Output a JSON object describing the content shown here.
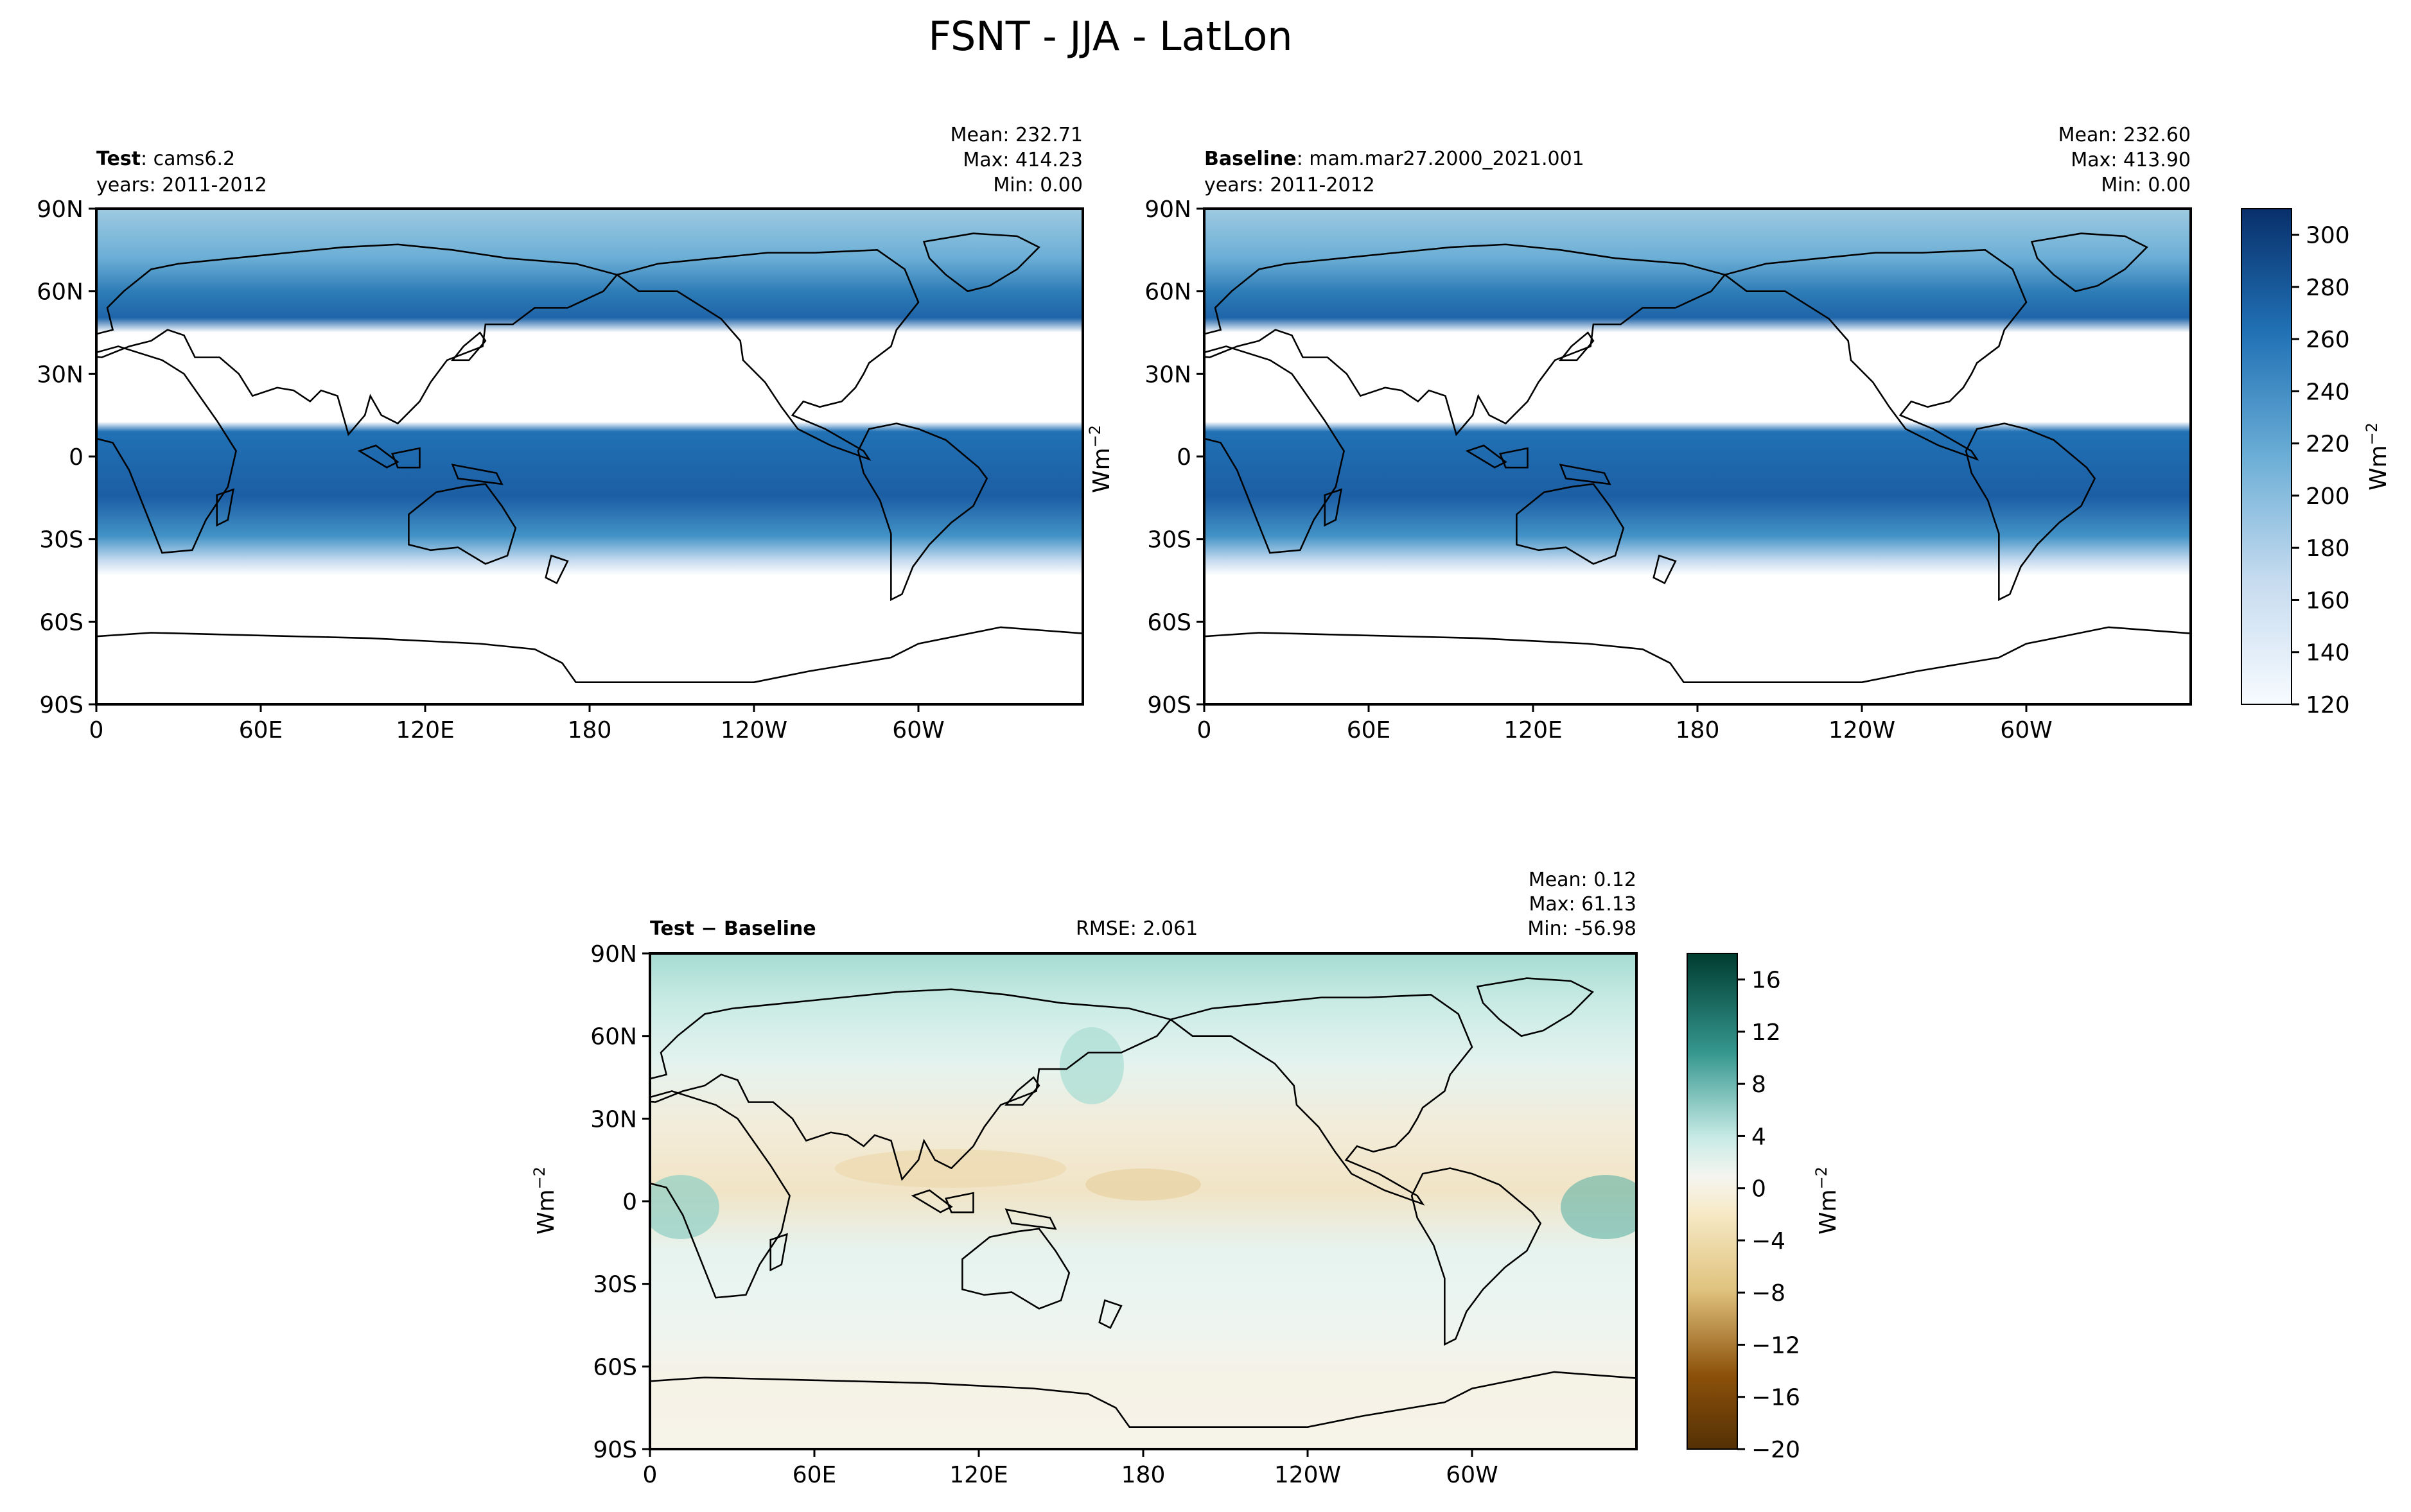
{
  "figure": {
    "title": "FSNT - JJA - LatLon"
  },
  "chart_data": [
    {
      "type": "heatmap",
      "panel": "test",
      "label_bold": "Test",
      "label_rest": ": cams6.2",
      "years": "years: 2011-2012",
      "stats": {
        "mean": "Mean: 232.71",
        "max": "Max: 414.23",
        "min": "Min:  0.00"
      },
      "xticks": [
        "0",
        "60E",
        "120E",
        "180",
        "120W",
        "60W"
      ],
      "yticks": [
        "90N",
        "60N",
        "30N",
        "0",
        "30S",
        "60S",
        "90S"
      ],
      "xlim": [
        0,
        360
      ],
      "ylim": [
        -90,
        90
      ],
      "colormap": "Blues"
    },
    {
      "type": "heatmap",
      "panel": "baseline",
      "label_bold": "Baseline",
      "label_rest": ": mam.mar27.2000_2021.001",
      "years": "years: 2011-2012",
      "stats": {
        "mean": "Mean: 232.60",
        "max": "Max: 413.90",
        "min": "Min:  0.00"
      },
      "xticks": [
        "0",
        "60E",
        "120E",
        "180",
        "120W",
        "60W"
      ],
      "yticks": [
        "90N",
        "60N",
        "30N",
        "0",
        "30S",
        "60S",
        "90S"
      ],
      "xlim": [
        0,
        360
      ],
      "ylim": [
        -90,
        90
      ],
      "colormap": "Blues"
    },
    {
      "type": "heatmap",
      "panel": "difference",
      "label_bold": "Test − Baseline",
      "rmse": "RMSE: 2.061",
      "stats": {
        "mean": "Mean:  0.12",
        "max": "Max: 61.13",
        "min": "Min: -56.98"
      },
      "xticks": [
        "0",
        "60E",
        "120E",
        "180",
        "120W",
        "60W"
      ],
      "yticks": [
        "90N",
        "60N",
        "30N",
        "0",
        "30S",
        "60S",
        "90S"
      ],
      "xlim": [
        0,
        360
      ],
      "ylim": [
        -90,
        90
      ],
      "colormap": "BrBG"
    }
  ],
  "colorbars": {
    "main": {
      "ticks": [
        "120",
        "140",
        "160",
        "180",
        "200",
        "220",
        "240",
        "260",
        "280",
        "300"
      ],
      "values": [
        120,
        140,
        160,
        180,
        200,
        220,
        240,
        260,
        280,
        300
      ],
      "range": [
        120,
        310
      ],
      "unit": "Wm",
      "unit_sup": "−2"
    },
    "diff": {
      "ticks": [
        "−20",
        "−16",
        "−12",
        "−8",
        "−4",
        "0",
        "4",
        "8",
        "12",
        "16"
      ],
      "values": [
        -20,
        -16,
        -12,
        -8,
        -4,
        0,
        4,
        8,
        12,
        16
      ],
      "range": [
        -20,
        18
      ],
      "unit": "Wm",
      "unit_sup": "−2"
    }
  },
  "side_unit": {
    "unit": "Wm",
    "unit_sup": "−2"
  },
  "colors": {
    "blue_dark": "#08306b",
    "blue_mid": "#2171b5",
    "blue_light": "#c6dbef",
    "teal": "#35978f",
    "brown": "#8c510a",
    "neutral": "#f5f5f0"
  }
}
